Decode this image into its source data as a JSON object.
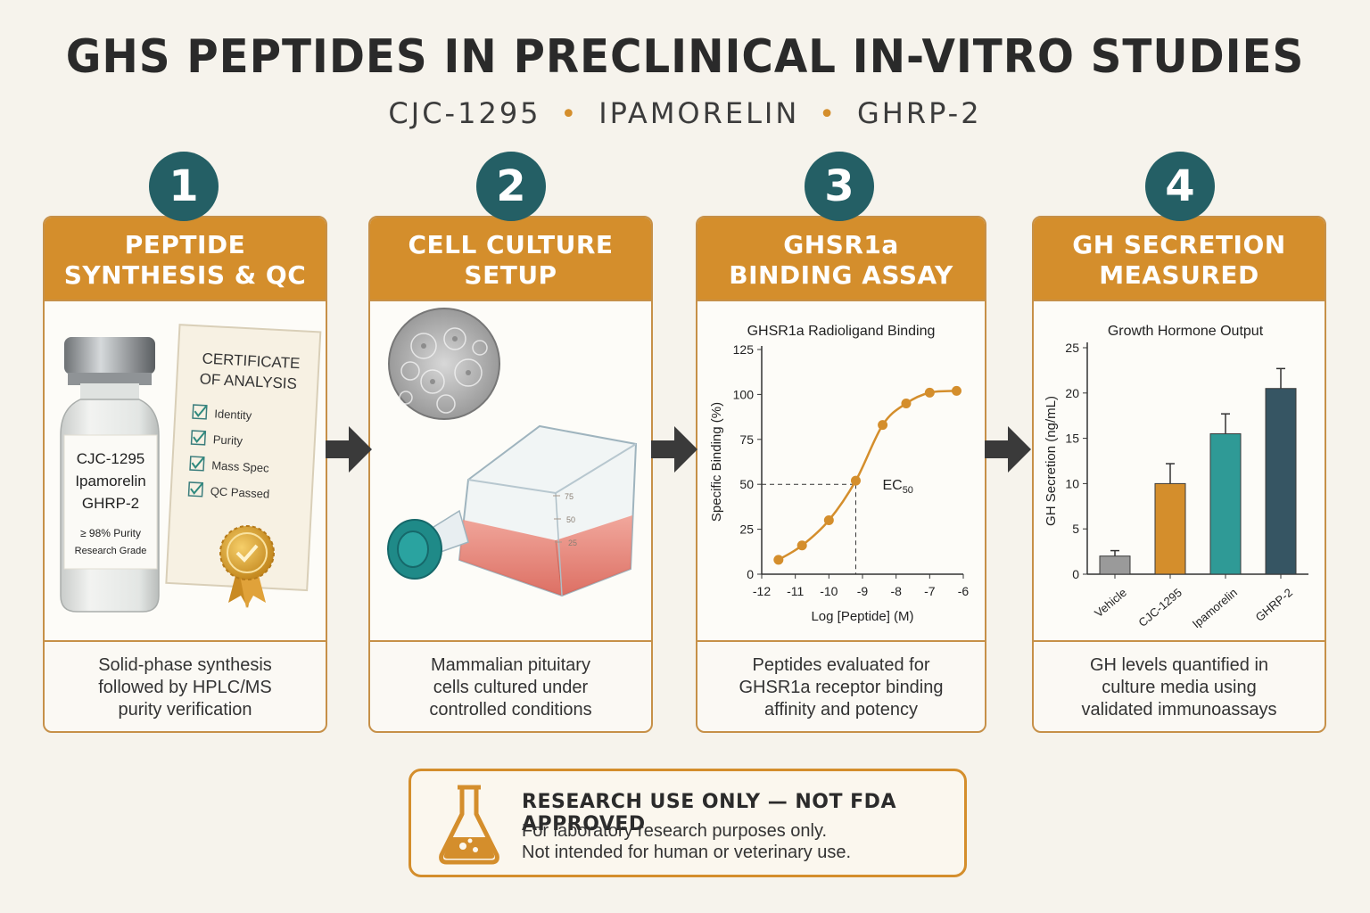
{
  "header": {
    "title": "GHS PEPTIDES IN PRECLINICAL IN-VITRO STUDIES",
    "peptides": [
      "CJC-1295",
      "IPAMORELIN",
      "GHRP-2"
    ]
  },
  "steps": [
    {
      "number": "1",
      "title_lines": [
        "PEPTIDE",
        "SYNTHESIS & QC"
      ],
      "desc_lines": [
        "Solid-phase synthesis",
        "followed by HPLC/MS",
        "purity verification"
      ],
      "vial_label": [
        "CJC-1295",
        "Ipamorelin",
        "GHRP-2",
        "≥ 98% Purity",
        "Research Grade"
      ],
      "certificate": {
        "title_lines": [
          "CERTIFICATE",
          "OF ANALYSIS"
        ],
        "checks": [
          "Identity",
          "Purity",
          "Mass Spec",
          "QC Passed"
        ]
      }
    },
    {
      "number": "2",
      "title_lines": [
        "CELL CULTURE",
        "SETUP"
      ],
      "desc_lines": [
        "Mammalian pituitary",
        "cells cultured under",
        "controlled conditions"
      ],
      "flask_marks": [
        "75",
        "50",
        "25"
      ]
    },
    {
      "number": "3",
      "title_lines": [
        "GHSR1a",
        "BINDING ASSAY"
      ],
      "desc_lines": [
        "Peptides evaluated for",
        "GHSR1a receptor binding",
        "affinity and potency"
      ]
    },
    {
      "number": "4",
      "title_lines": [
        "GH SECRETION",
        "MEASURED"
      ],
      "desc_lines": [
        "GH levels quantified in",
        "culture media using",
        "validated immunoassays"
      ]
    }
  ],
  "chart_data": [
    {
      "type": "line",
      "title": "GHSR1a Radioligand Binding",
      "xlabel": "Log [Peptide] (M)",
      "ylabel": "Specific Binding (%)",
      "x_ticks": [
        -12,
        -11,
        -10,
        -9,
        -8,
        -7,
        -6
      ],
      "y_ticks": [
        0,
        25,
        50,
        75,
        100,
        125
      ],
      "xlim": [
        -12,
        -6
      ],
      "ylim": [
        0,
        125
      ],
      "x": [
        -11.5,
        -10.8,
        -10.0,
        -9.2,
        -8.4,
        -7.7,
        -7.0,
        -6.2
      ],
      "y": [
        8,
        16,
        30,
        52,
        83,
        95,
        101,
        102
      ],
      "annotation": {
        "label": "EC",
        "subscript": "50",
        "x": -9.2,
        "y": 50
      },
      "color": "#d48e2c"
    },
    {
      "type": "bar",
      "title": "Growth Hormone Output",
      "ylabel": "GH Secretion (ng/mL)",
      "categories": [
        "Vehicle",
        "CJC-1295",
        "Ipamorelin",
        "GHRP-2"
      ],
      "values": [
        2,
        10,
        15.5,
        20.5
      ],
      "errors": [
        0.6,
        2.2,
        2.2,
        2.2
      ],
      "colors": [
        "#9a9a9a",
        "#d48e2c",
        "#2f9a96",
        "#365563"
      ],
      "y_ticks": [
        0,
        5,
        10,
        15,
        20,
        25
      ],
      "ylim": [
        0,
        25
      ]
    }
  ],
  "notice": {
    "heading": "RESEARCH USE ONLY — NOT FDA APPROVED",
    "lines": [
      "For laboratory research purposes only.",
      "Not intended for human or veterinary use."
    ]
  }
}
